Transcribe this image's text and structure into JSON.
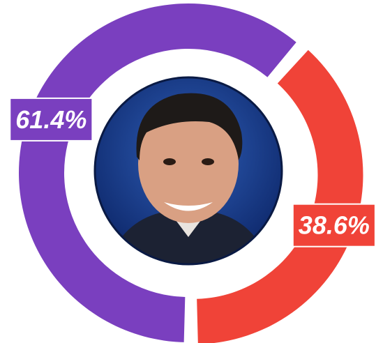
{
  "chart_data": {
    "type": "pie",
    "donut": true,
    "values": [
      61.4,
      38.6
    ],
    "value_labels": [
      "61.4%",
      "38.6%"
    ],
    "colors": [
      "#7a3fbf",
      "#f04338"
    ]
  }
}
